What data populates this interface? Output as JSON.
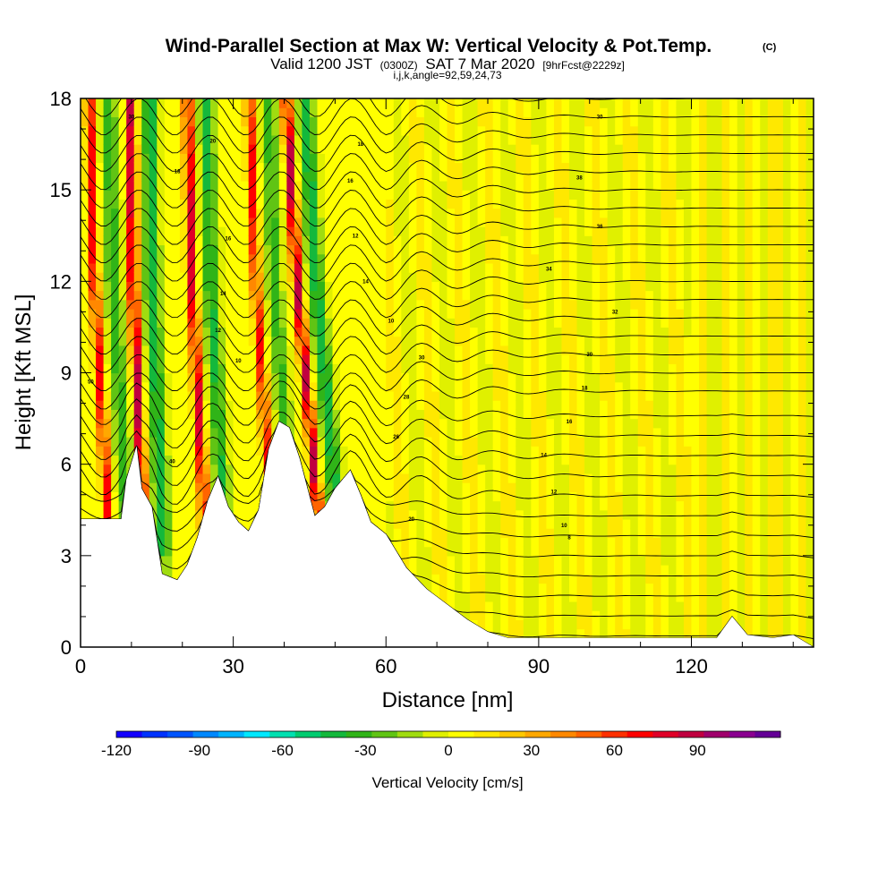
{
  "chart_data": {
    "type": "heatmap",
    "title": "Wind-Parallel Section at Max W: Vertical Velocity & Pot.Temp.",
    "copyright": "(C)",
    "subtitle_prefix": "Valid 1200 JST",
    "subtitle_utc": "(0300Z)",
    "subtitle_date": "SAT 7 Mar 2020",
    "subtitle_fcst": "[9hrFcst@2229z]",
    "subtitle2": "i,j,k,angle=92,59,24,73",
    "xlabel": "Distance [nm]",
    "ylabel": "Height [Kft MSL]",
    "xlim": [
      0,
      144
    ],
    "ylim": [
      0,
      18
    ],
    "xticks": [
      "0",
      "30",
      "60",
      "90",
      "120"
    ],
    "yticks": [
      "0",
      "3",
      "6",
      "9",
      "12",
      "15",
      "18"
    ],
    "colorbar": {
      "label": "Vertical Velocity [cm/s]",
      "range": [
        -120,
        110
      ],
      "step": 10,
      "ticks": [
        "-120",
        "-90",
        "-60",
        "-30",
        "0",
        "30",
        "60",
        "90"
      ],
      "colors": [
        "#1400ff",
        "#0033ff",
        "#0055ff",
        "#0088ff",
        "#00b4ff",
        "#00e8ff",
        "#00e0b0",
        "#00cc70",
        "#14b83c",
        "#30b418",
        "#60c414",
        "#a0dc10",
        "#e0f000",
        "#ffff00",
        "#ffe800",
        "#ffc800",
        "#ffa800",
        "#ff8800",
        "#ff6400",
        "#ff3000",
        "#ff0000",
        "#e00028",
        "#c00040",
        "#a0006c",
        "#8a0090",
        "#640096"
      ]
    },
    "terrain_kft": [
      [
        0,
        4.2
      ],
      [
        8,
        4.2
      ],
      [
        9,
        5.5
      ],
      [
        11,
        6.6
      ],
      [
        12,
        5.2
      ],
      [
        14,
        4.6
      ],
      [
        16,
        2.4
      ],
      [
        19,
        2.2
      ],
      [
        21,
        2.7
      ],
      [
        23,
        3.6
      ],
      [
        25,
        4.8
      ],
      [
        27,
        5.6
      ],
      [
        29,
        4.6
      ],
      [
        31,
        4.1
      ],
      [
        33,
        3.8
      ],
      [
        35,
        4.5
      ],
      [
        37,
        6.5
      ],
      [
        39,
        7.4
      ],
      [
        41,
        7.2
      ],
      [
        43,
        6.2
      ],
      [
        46,
        4.3
      ],
      [
        48,
        4.6
      ],
      [
        50,
        5.2
      ],
      [
        53,
        5.8
      ],
      [
        55,
        5.0
      ],
      [
        57,
        4.1
      ],
      [
        60,
        3.7
      ],
      [
        64,
        2.6
      ],
      [
        68,
        1.9
      ],
      [
        72,
        1.4
      ],
      [
        76,
        0.9
      ],
      [
        80,
        0.5
      ],
      [
        84,
        0.3
      ],
      [
        90,
        0.3
      ],
      [
        110,
        0.3
      ],
      [
        125,
        0.3
      ],
      [
        128,
        1.0
      ],
      [
        131,
        0.4
      ],
      [
        136,
        0.3
      ],
      [
        140,
        0.4
      ],
      [
        144,
        0
      ]
    ],
    "theta_labels": [
      {
        "x": 102,
        "y": 17.4,
        "text": "30"
      },
      {
        "x": 98,
        "y": 15.4,
        "text": "38"
      },
      {
        "x": 102,
        "y": 13.8,
        "text": "36"
      },
      {
        "x": 92,
        "y": 12.4,
        "text": "34"
      },
      {
        "x": 105,
        "y": 11.0,
        "text": "32"
      },
      {
        "x": 100,
        "y": 9.6,
        "text": "30"
      },
      {
        "x": 99,
        "y": 8.5,
        "text": "18"
      },
      {
        "x": 96,
        "y": 7.4,
        "text": "16"
      },
      {
        "x": 91,
        "y": 6.3,
        "text": "14"
      },
      {
        "x": 93,
        "y": 5.1,
        "text": "12"
      },
      {
        "x": 95,
        "y": 4.0,
        "text": "10"
      },
      {
        "x": 96,
        "y": 3.6,
        "text": "8"
      },
      {
        "x": 65,
        "y": 4.2,
        "text": "20"
      },
      {
        "x": 2,
        "y": 8.7,
        "text": "50"
      },
      {
        "x": 10,
        "y": 17.4,
        "text": "30"
      },
      {
        "x": 26,
        "y": 16.6,
        "text": "20"
      },
      {
        "x": 19,
        "y": 15.6,
        "text": "18"
      },
      {
        "x": 29,
        "y": 13.4,
        "text": "16"
      },
      {
        "x": 28,
        "y": 11.6,
        "text": "14"
      },
      {
        "x": 27,
        "y": 10.4,
        "text": "12"
      },
      {
        "x": 31,
        "y": 9.4,
        "text": "10"
      },
      {
        "x": 55,
        "y": 16.5,
        "text": "18"
      },
      {
        "x": 53,
        "y": 15.3,
        "text": "16"
      },
      {
        "x": 56,
        "y": 12.0,
        "text": "14"
      },
      {
        "x": 54,
        "y": 13.5,
        "text": "12"
      },
      {
        "x": 61,
        "y": 10.7,
        "text": "10"
      },
      {
        "x": 67,
        "y": 9.5,
        "text": "30"
      },
      {
        "x": 64,
        "y": 8.2,
        "text": "28"
      },
      {
        "x": 62,
        "y": 6.9,
        "text": "26"
      },
      {
        "x": 18,
        "y": 6.1,
        "text": "40"
      }
    ]
  }
}
